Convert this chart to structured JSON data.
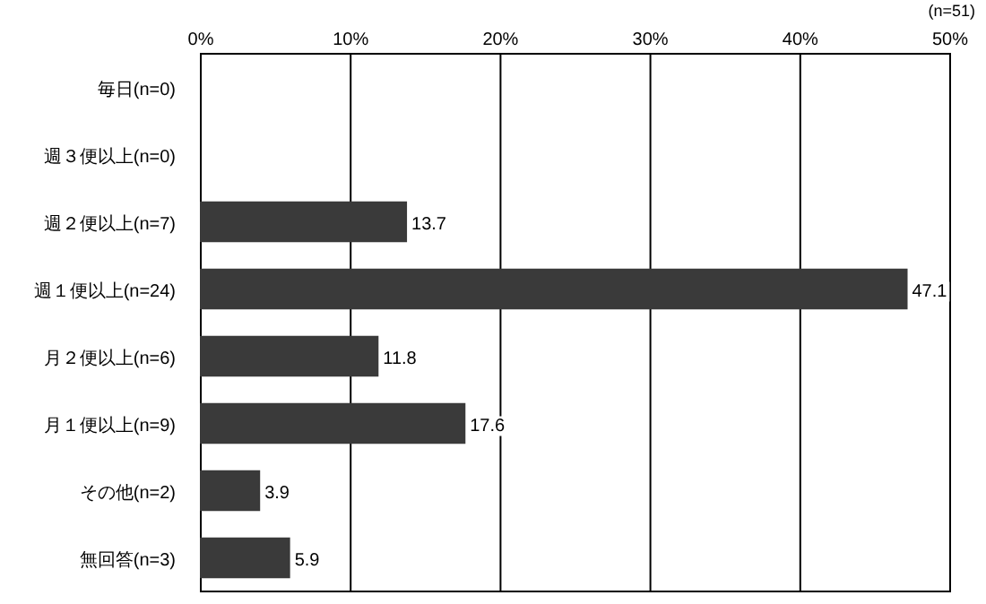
{
  "chart_data": {
    "type": "bar",
    "orientation": "horizontal",
    "categories": [
      "毎日(n=0)",
      "週３便以上(n=0)",
      "週２便以上(n=7)",
      "週１便以上(n=24)",
      "月２便以上(n=6)",
      "月１便以上(n=9)",
      "その他(n=2)",
      "無回答(n=3)"
    ],
    "values": [
      0,
      0,
      13.7,
      47.1,
      11.8,
      17.6,
      3.9,
      5.9
    ],
    "value_labels": [
      null,
      null,
      "13.7",
      "47.1",
      "11.8",
      "17.6",
      "3.9",
      "5.9"
    ],
    "color": "#3a3a3a",
    "xlim": [
      0,
      50
    ],
    "xticks": [
      {
        "value": 0,
        "label": "0%"
      },
      {
        "value": 10,
        "label": "10%"
      },
      {
        "value": 20,
        "label": "20%"
      },
      {
        "value": 30,
        "label": "30%"
      },
      {
        "value": 40,
        "label": "40%"
      },
      {
        "value": 50,
        "label": "50%"
      }
    ],
    "grid": "x",
    "annotations": [
      "(n=51)"
    ]
  }
}
